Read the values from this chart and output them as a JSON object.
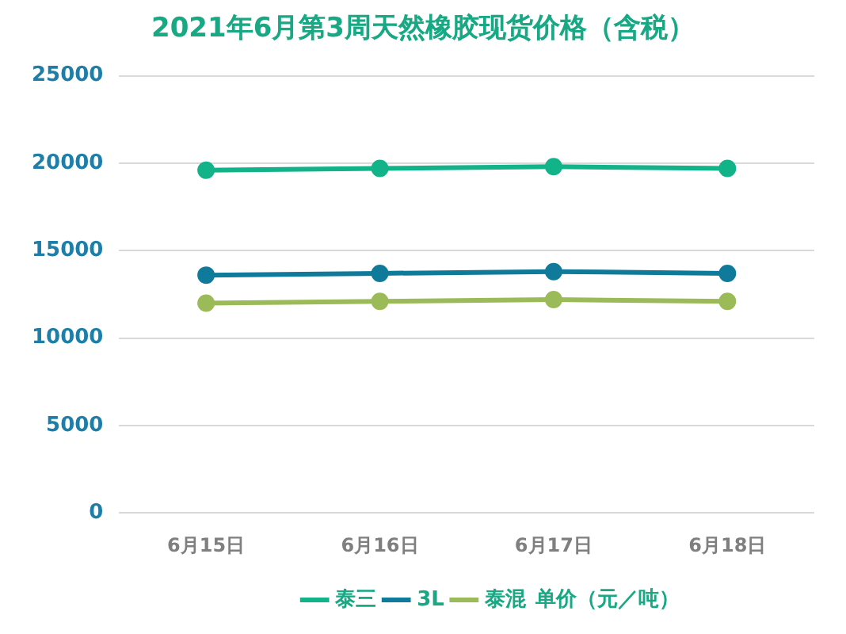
{
  "chart_data": {
    "type": "line",
    "title": "2021年6月第3周天然橡胶现货价格（含税）",
    "annotations": [
      "单价（元／吨）"
    ],
    "categories": [
      "6月15日",
      "6月16日",
      "6月17日",
      "6月18日"
    ],
    "series": [
      {
        "name": "泰三",
        "color": "#13b38a",
        "values": [
          19600,
          19700,
          19800,
          19700
        ]
      },
      {
        "name": "3L",
        "color": "#0f7a9a",
        "values": [
          13600,
          13700,
          13800,
          13700
        ]
      },
      {
        "name": "泰混",
        "color": "#9bbb59",
        "values": [
          12000,
          12100,
          12200,
          12100
        ]
      }
    ],
    "ylim": [
      0,
      25000
    ],
    "yticks": [
      0,
      5000,
      10000,
      15000,
      20000,
      25000
    ],
    "grid": "y",
    "legend": "bottom",
    "marker": "circle",
    "line_style": "solid"
  }
}
